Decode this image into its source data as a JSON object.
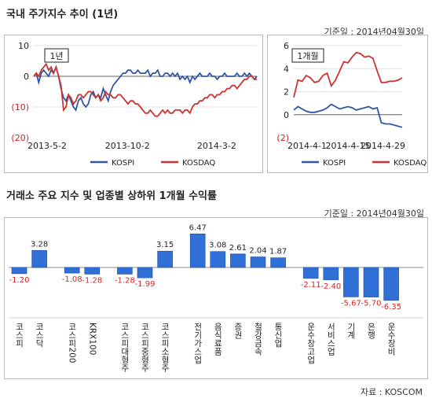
{
  "section1": {
    "title": "국내 주가지수 추이 (1년)",
    "base_date": "기준일 : 2014년04월30일"
  },
  "section2": {
    "title": "거래소 주요 지수 및 업종별 상하위 1개월 수익률",
    "base_date": "기준일 : 2014년04월30일"
  },
  "source": "자료 : KOSCOM",
  "colors": {
    "kospi": "#3355a6",
    "kosdaq": "#cc3333",
    "bar": "#2f6fd6",
    "neg_label": "#dd2222"
  },
  "chart_data": [
    {
      "type": "line",
      "badge": "1년",
      "y_ticks": [
        "10",
        "0",
        "(10)",
        "(20)"
      ],
      "ylim": [
        -20,
        10
      ],
      "x_ticks": [
        "2013-5-2",
        "2013-10-2",
        "2014-3-2"
      ],
      "x_ticks_pos": [
        0,
        0.42,
        0.82
      ],
      "series": [
        {
          "name": "KOSPI",
          "color": "#3355a6",
          "values": [
            0,
            1,
            -2,
            1,
            2,
            1,
            0,
            2,
            1,
            3,
            0,
            -4,
            -7,
            -8,
            -6,
            -8,
            -10,
            -11,
            -8,
            -7,
            -9,
            -10,
            -9,
            -6,
            -5,
            -7,
            -6,
            -7,
            -4,
            -6,
            -8,
            -5,
            -3,
            -2,
            -1,
            0,
            1,
            1,
            2,
            2,
            1,
            1,
            2,
            1,
            1,
            1,
            2,
            0,
            1,
            1,
            2,
            0,
            0,
            1,
            1,
            0,
            1,
            0,
            1,
            -1,
            0,
            -1,
            0,
            -2,
            0,
            -1,
            0,
            1,
            0,
            0,
            0,
            1,
            0,
            0,
            -1,
            0,
            0,
            1,
            0,
            0,
            0,
            0,
            1,
            0,
            0,
            1,
            0,
            1,
            0,
            -1,
            0
          ]
        },
        {
          "name": "KOSDAQ",
          "color": "#cc3333",
          "values": [
            0,
            1,
            0,
            2,
            3,
            4,
            2,
            3,
            1,
            3,
            0,
            -3,
            -11,
            -10,
            -6,
            -7,
            -9,
            -8,
            -6,
            -6,
            -7,
            -6,
            -5,
            -5,
            -6,
            -7,
            -6,
            -8,
            -7,
            -5,
            -6,
            -6,
            -7,
            -7,
            -6,
            -6,
            -7,
            -8,
            -9,
            -8,
            -8,
            -9,
            -9,
            -10,
            -11,
            -12,
            -12,
            -11,
            -12,
            -13,
            -13,
            -12,
            -11,
            -12,
            -11,
            -12,
            -12,
            -11,
            -11,
            -11,
            -12,
            -11,
            -11,
            -12,
            -10,
            -9,
            -9,
            -8,
            -8,
            -7,
            -7,
            -6,
            -6,
            -7,
            -6,
            -6,
            -5,
            -5,
            -4,
            -4,
            -3,
            -3,
            -4,
            -3,
            -2,
            -1,
            -1,
            0,
            0,
            -1,
            -1
          ]
        }
      ]
    },
    {
      "type": "line",
      "badge": "1개월",
      "y_ticks": [
        "6",
        "4",
        "2",
        "0",
        "(2)"
      ],
      "ylim": [
        -2,
        6
      ],
      "x_ticks": [
        "2014-4-1",
        "2014-4-15",
        "2014-4-29"
      ],
      "x_ticks_pos": [
        0,
        0.5,
        1
      ],
      "series": [
        {
          "name": "KOSPI",
          "color": "#3355a6",
          "values": [
            0.4,
            0.7,
            0.5,
            0.3,
            0.2,
            0.2,
            0.3,
            0.4,
            0.6,
            0.9,
            0.7,
            0.5,
            0.6,
            0.7,
            0.6,
            0.4,
            0.5,
            0.6,
            0.7,
            0.5,
            0.6,
            -0.7,
            -0.8,
            -0.8,
            -0.9,
            -1.0,
            -1.1
          ]
        },
        {
          "name": "KOSDAQ",
          "color": "#cc3333",
          "values": [
            1.5,
            3.0,
            2.9,
            3.4,
            3.2,
            2.8,
            2.9,
            3.4,
            3.6,
            2.5,
            3.0,
            3.8,
            4.6,
            4.5,
            5.0,
            5.4,
            5.3,
            5.0,
            5.1,
            4.9,
            3.8,
            2.8,
            2.8,
            2.9,
            2.9,
            3.0,
            3.2
          ]
        }
      ]
    },
    {
      "type": "bar",
      "categories": [
        "코스피",
        "코스닥",
        "코스피200",
        "KRX100",
        "코스피대형주",
        "코스피중형주",
        "코스피소형주",
        "전기가스업",
        "음식료품",
        "증권",
        "철강금속",
        "통신업",
        "운수창고업",
        "서비스업",
        "기계",
        "은행",
        "운수장비"
      ],
      "group_index": [
        0,
        0,
        1,
        1,
        2,
        2,
        2,
        3,
        3,
        3,
        3,
        3,
        4,
        4,
        4,
        4,
        4
      ],
      "values": [
        -1.2,
        3.28,
        -1.08,
        -1.28,
        -1.28,
        -1.99,
        3.15,
        6.47,
        3.08,
        2.61,
        2.04,
        1.87,
        -2.11,
        -2.4,
        -5.67,
        -5.7,
        -6.35
      ],
      "labels": [
        "-1.20",
        "3.28",
        "-1.08",
        "-1.28",
        "-1.28",
        "-1.99",
        "3.15",
        "6.47",
        "3.08",
        "2.61",
        "2.04",
        "1.87",
        "-2.11",
        "-2.40",
        "-5.67",
        "-5.70",
        "-6.35"
      ]
    }
  ]
}
